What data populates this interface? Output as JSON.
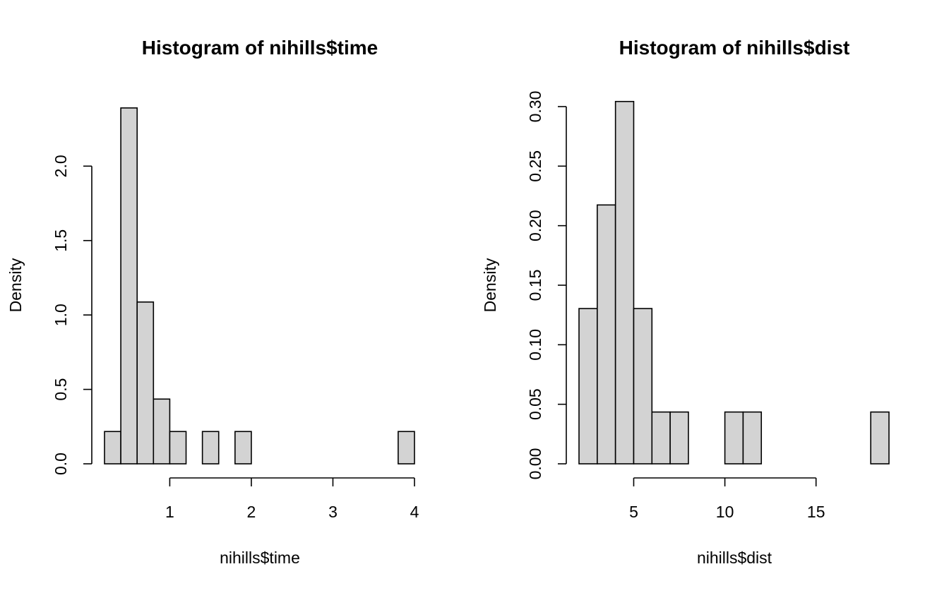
{
  "chart_data": [
    {
      "type": "bar",
      "title": "Histogram of nihills$time",
      "xlabel": "nihills$time",
      "ylabel": "Density",
      "bin_edges": [
        0.2,
        0.4,
        0.6,
        0.8,
        1.0,
        1.2,
        1.4,
        1.6,
        1.8,
        2.0,
        2.2,
        2.4,
        2.6,
        2.8,
        3.0,
        3.2,
        3.4,
        3.6,
        3.8,
        4.0
      ],
      "values": [
        0.217,
        2.391,
        1.087,
        0.435,
        0.217,
        0,
        0.217,
        0,
        0.217,
        0,
        0,
        0,
        0,
        0,
        0,
        0,
        0,
        0,
        0.217
      ],
      "xlim": [
        0.2,
        4.0
      ],
      "ylim": [
        0,
        2.4
      ],
      "x_ticks": [
        1,
        2,
        3,
        4
      ],
      "x_tick_labels": [
        "1",
        "2",
        "3",
        "4"
      ],
      "y_ticks": [
        0,
        0.5,
        1.0,
        1.5,
        2.0
      ],
      "y_tick_labels": [
        "0.0",
        "0.5",
        "1.0",
        "1.5",
        "2.0"
      ],
      "bar_color": "#d3d3d3",
      "grid": false
    },
    {
      "type": "bar",
      "title": "Histogram of nihills$dist",
      "xlabel": "nihills$dist",
      "ylabel": "Density",
      "bin_edges": [
        2,
        3,
        4,
        5,
        6,
        7,
        8,
        9,
        10,
        11,
        12,
        13,
        14,
        15,
        16,
        17,
        18,
        19
      ],
      "values": [
        0.1304,
        0.2174,
        0.3043,
        0.1304,
        0.0435,
        0.0435,
        0,
        0,
        0.0435,
        0.0435,
        0,
        0,
        0,
        0,
        0,
        0,
        0.0435
      ],
      "xlim": [
        2,
        19
      ],
      "ylim": [
        0,
        0.3
      ],
      "x_ticks": [
        5,
        10,
        15
      ],
      "x_tick_labels": [
        "5",
        "10",
        "15"
      ],
      "y_ticks": [
        0,
        0.05,
        0.1,
        0.15,
        0.2,
        0.25,
        0.3
      ],
      "y_tick_labels": [
        "0.00",
        "0.05",
        "0.10",
        "0.15",
        "0.20",
        "0.25",
        "0.30"
      ],
      "bar_color": "#d3d3d3",
      "grid": false
    }
  ]
}
